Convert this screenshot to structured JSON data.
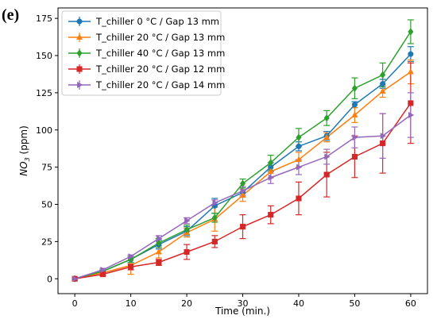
{
  "panel_label": "(e)",
  "chart_data": {
    "type": "line",
    "xlabel": "Time (min.)",
    "ylabel": {
      "base": "NO",
      "sub": "3",
      "rest": " (ppm)"
    },
    "xlim": [
      -3,
      63
    ],
    "ylim": [
      -10,
      182
    ],
    "xticks": [
      0,
      10,
      20,
      30,
      40,
      50,
      60
    ],
    "yticks": [
      0,
      25,
      50,
      75,
      100,
      125,
      150,
      175
    ],
    "grid": false,
    "legend_position": "top-left",
    "x": [
      0,
      5,
      10,
      15,
      20,
      25,
      30,
      35,
      40,
      45,
      50,
      55,
      60
    ],
    "series": [
      {
        "name": "T_chiller 0 °C / Gap 13 mm",
        "color": "#1f77b4",
        "marker": "circle",
        "values": [
          0,
          5,
          13,
          23,
          32,
          49,
          58,
          75,
          89,
          96,
          117,
          131,
          151
        ],
        "errors": [
          0,
          1,
          2,
          3,
          3,
          5,
          3,
          3,
          3,
          3,
          2,
          3,
          5
        ]
      },
      {
        "name": "T_chiller 20 °C / Gap 13 mm",
        "color": "#ff7f0e",
        "marker": "triangle-up",
        "values": [
          0,
          4,
          9,
          18,
          31,
          40,
          56,
          72,
          80,
          95,
          110,
          126,
          139
        ],
        "errors": [
          0,
          2,
          6,
          4,
          3,
          8,
          4,
          4,
          5,
          3,
          5,
          4,
          8
        ]
      },
      {
        "name": "T_chiller 40 °C / Gap 13 mm",
        "color": "#2ca02c",
        "marker": "diamond",
        "values": [
          0,
          5,
          13,
          24,
          33,
          41,
          64,
          78,
          95,
          108,
          128,
          137,
          166
        ],
        "errors": [
          0,
          1,
          2,
          3,
          3,
          3,
          3,
          5,
          6,
          5,
          7,
          8,
          8
        ]
      },
      {
        "name": "T_chiller 20 °C / Gap 12 mm",
        "color": "#d62728",
        "marker": "square",
        "values": [
          0,
          3,
          8,
          11,
          18,
          25,
          35,
          43,
          54,
          70,
          82,
          91,
          118
        ],
        "errors": [
          0,
          1,
          2,
          2,
          5,
          4,
          8,
          6,
          11,
          15,
          14,
          20,
          27
        ]
      },
      {
        "name": "T_chiller 20 °C / Gap 14 mm",
        "color": "#9467bd",
        "marker": "triangle-right",
        "values": [
          0,
          6,
          15,
          27,
          39,
          51,
          59,
          68,
          75,
          82,
          95,
          96,
          110
        ],
        "errors": [
          0,
          1,
          1,
          2,
          2,
          2,
          3,
          4,
          5,
          5,
          7,
          15,
          15
        ]
      }
    ]
  }
}
